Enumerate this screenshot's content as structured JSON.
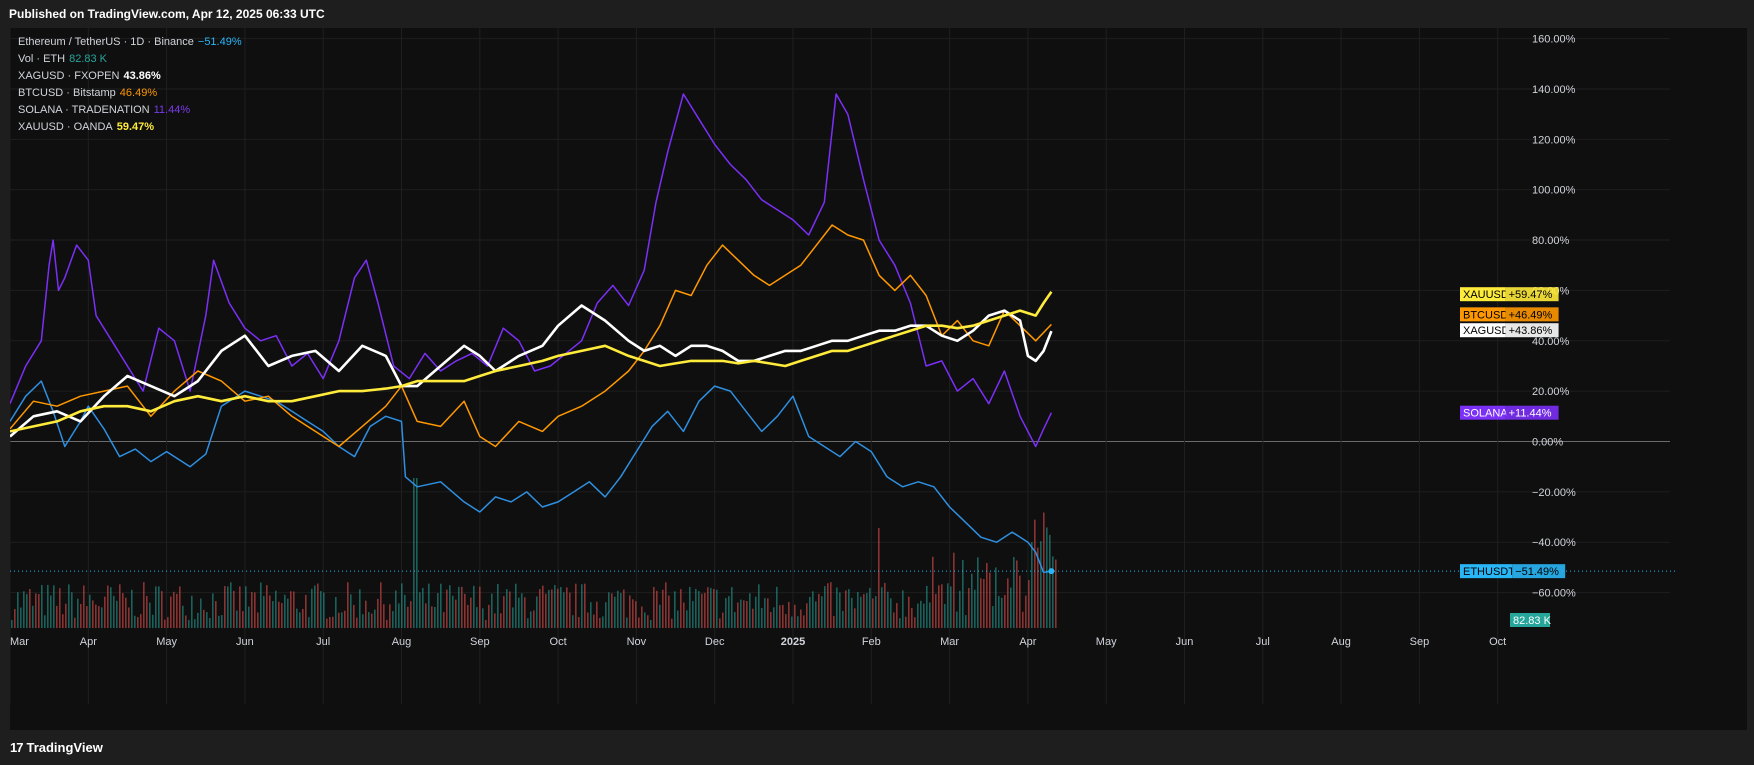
{
  "header": {
    "published": "Published on TradingView.com, Apr 12, 2025 06:33 UTC"
  },
  "legend": [
    {
      "label": "Ethereum / TetherUS · 1D · Binance",
      "value": "−51.49%",
      "color": "#29b6f6"
    },
    {
      "label": "Vol · ETH",
      "value": "82.83 K",
      "color": "#26a69a"
    },
    {
      "label": "XAGUSD · FXOPEN",
      "value": "43.86%",
      "color": "#ffffff"
    },
    {
      "label": "BTCUSD · Bitstamp",
      "value": "46.49%",
      "color": "#ff9800"
    },
    {
      "label": "SOLANA · TRADENATION",
      "value": "11.44%",
      "color": "#7c3aed"
    },
    {
      "label": "XAUUSD · OANDA",
      "value": "59.47%",
      "color": "#ffeb3b"
    }
  ],
  "footer": {
    "brand": "TradingView",
    "logo": "17"
  },
  "chart_data": {
    "type": "line",
    "yaxis_ticks": [
      "160.00%",
      "140.00%",
      "120.00%",
      "100.00%",
      "80.00%",
      "60.00%",
      "40.00%",
      "20.00%",
      "0.00%",
      "−20.00%",
      "−40.00%",
      "−60.00%"
    ],
    "ylim": [
      -75,
      172
    ],
    "xaxis_ticks": [
      "Mar",
      "Apr",
      "May",
      "Jun",
      "Jul",
      "Aug",
      "Sep",
      "Oct",
      "Nov",
      "Dec",
      "2025",
      "Feb",
      "Mar",
      "Apr",
      "May",
      "Jun",
      "Jul",
      "Aug",
      "Sep",
      "Oct"
    ],
    "x_range_months": [
      0,
      19.5
    ],
    "series": [
      {
        "name": "ETHUSDT",
        "badge": "−51.49%",
        "color": "#2f8fe0",
        "width": 1.5,
        "x": [
          0,
          0.2,
          0.4,
          0.55,
          0.7,
          0.9,
          1.0,
          1.2,
          1.4,
          1.6,
          1.8,
          2.0,
          2.3,
          2.5,
          2.7,
          3.0,
          3.2,
          3.4,
          3.6,
          3.8,
          4.0,
          4.2,
          4.4,
          4.6,
          4.8,
          5.0,
          5.05,
          5.2,
          5.5,
          5.8,
          6.0,
          6.2,
          6.4,
          6.6,
          6.8,
          7.0,
          7.2,
          7.4,
          7.6,
          7.8,
          8.0,
          8.2,
          8.4,
          8.6,
          8.8,
          9.0,
          9.2,
          9.4,
          9.6,
          9.8,
          10.0,
          10.2,
          10.4,
          10.6,
          10.8,
          11.0,
          11.2,
          11.4,
          11.6,
          11.8,
          12.0,
          12.2,
          12.4,
          12.6,
          12.8,
          13.0,
          13.1,
          13.2,
          13.3
        ],
        "y": [
          8,
          18,
          24,
          12,
          -2,
          8,
          14,
          5,
          -6,
          -3,
          -8,
          -4,
          -10,
          -5,
          14,
          20,
          18,
          16,
          12,
          8,
          4,
          -2,
          -6,
          6,
          10,
          8,
          -14,
          -18,
          -16,
          -24,
          -28,
          -22,
          -24,
          -20,
          -26,
          -24,
          -20,
          -16,
          -22,
          -14,
          -4,
          6,
          12,
          4,
          16,
          22,
          20,
          12,
          4,
          10,
          18,
          2,
          -2,
          -6,
          0,
          -4,
          -14,
          -18,
          -16,
          -18,
          -26,
          -32,
          -38,
          -40,
          -36,
          -40,
          -44,
          -52,
          -51.49
        ]
      },
      {
        "name": "SOLANA",
        "badge": "+11.44%",
        "color": "#7b2ff7",
        "width": 1.5,
        "x": [
          0,
          0.2,
          0.4,
          0.5,
          0.55,
          0.62,
          0.7,
          0.85,
          1.0,
          1.1,
          1.3,
          1.5,
          1.7,
          1.9,
          2.1,
          2.3,
          2.5,
          2.6,
          2.8,
          3.0,
          3.2,
          3.4,
          3.6,
          3.8,
          4.0,
          4.2,
          4.4,
          4.55,
          4.7,
          4.9,
          5.1,
          5.3,
          5.5,
          5.7,
          5.9,
          6.1,
          6.3,
          6.5,
          6.7,
          6.9,
          7.1,
          7.3,
          7.5,
          7.7,
          7.9,
          8.1,
          8.25,
          8.4,
          8.6,
          8.8,
          9.0,
          9.2,
          9.4,
          9.6,
          9.8,
          10.0,
          10.2,
          10.4,
          10.55,
          10.7,
          10.9,
          11.1,
          11.3,
          11.5,
          11.7,
          11.9,
          12.1,
          12.3,
          12.5,
          12.7,
          12.9,
          13.1,
          13.2,
          13.3
        ],
        "y": [
          15,
          30,
          40,
          70,
          80,
          60,
          65,
          78,
          72,
          50,
          40,
          30,
          20,
          45,
          40,
          20,
          50,
          72,
          55,
          45,
          40,
          42,
          30,
          35,
          25,
          40,
          65,
          72,
          55,
          30,
          25,
          35,
          28,
          32,
          35,
          30,
          45,
          40,
          28,
          30,
          35,
          40,
          55,
          62,
          54,
          68,
          95,
          115,
          138,
          128,
          118,
          110,
          104,
          96,
          92,
          88,
          82,
          95,
          138,
          130,
          104,
          80,
          70,
          55,
          30,
          32,
          20,
          25,
          15,
          28,
          10,
          -2,
          5,
          11.44
        ]
      },
      {
        "name": "BTCUSD",
        "badge": "+46.49%",
        "color": "#ff9800",
        "width": 1.5,
        "x": [
          0,
          0.3,
          0.6,
          0.9,
          1.2,
          1.5,
          1.8,
          2.1,
          2.4,
          2.7,
          3.0,
          3.3,
          3.6,
          3.9,
          4.2,
          4.5,
          4.8,
          5.0,
          5.2,
          5.5,
          5.8,
          6.0,
          6.2,
          6.5,
          6.8,
          7.0,
          7.3,
          7.6,
          7.9,
          8.1,
          8.3,
          8.5,
          8.7,
          8.9,
          9.1,
          9.3,
          9.5,
          9.7,
          9.9,
          10.1,
          10.3,
          10.5,
          10.7,
          10.9,
          11.1,
          11.3,
          11.5,
          11.7,
          11.9,
          12.1,
          12.3,
          12.5,
          12.7,
          12.9,
          13.1,
          13.3
        ],
        "y": [
          5,
          16,
          14,
          18,
          20,
          22,
          10,
          20,
          28,
          24,
          16,
          18,
          10,
          4,
          -2,
          6,
          14,
          22,
          8,
          6,
          16,
          2,
          -2,
          8,
          4,
          10,
          14,
          20,
          28,
          36,
          46,
          60,
          58,
          70,
          78,
          72,
          66,
          62,
          66,
          70,
          78,
          86,
          82,
          80,
          66,
          60,
          66,
          58,
          42,
          48,
          40,
          38,
          52,
          46,
          40,
          46.49
        ]
      },
      {
        "name": "XAGUSD",
        "badge": "+43.86%",
        "color": "#ffffff",
        "width": 2.6,
        "x": [
          0,
          0.3,
          0.6,
          0.9,
          1.2,
          1.5,
          1.8,
          2.1,
          2.4,
          2.7,
          3.0,
          3.3,
          3.6,
          3.9,
          4.2,
          4.5,
          4.8,
          5.0,
          5.2,
          5.5,
          5.8,
          6.0,
          6.2,
          6.5,
          6.8,
          7.0,
          7.3,
          7.6,
          7.9,
          8.1,
          8.3,
          8.5,
          8.7,
          8.9,
          9.1,
          9.3,
          9.5,
          9.7,
          9.9,
          10.1,
          10.3,
          10.5,
          10.7,
          10.9,
          11.1,
          11.3,
          11.5,
          11.7,
          11.9,
          12.1,
          12.3,
          12.5,
          12.7,
          12.9,
          13.0,
          13.1,
          13.2,
          13.3
        ],
        "y": [
          2,
          10,
          12,
          8,
          18,
          26,
          22,
          18,
          24,
          36,
          42,
          30,
          34,
          36,
          28,
          38,
          34,
          22,
          22,
          30,
          38,
          34,
          28,
          34,
          38,
          46,
          54,
          48,
          40,
          36,
          38,
          34,
          38,
          38,
          36,
          32,
          32,
          34,
          36,
          36,
          38,
          40,
          40,
          42,
          44,
          44,
          46,
          46,
          42,
          40,
          44,
          50,
          52,
          48,
          34,
          32,
          36,
          43.86
        ]
      },
      {
        "name": "XAUUSD",
        "badge": "+59.47%",
        "color": "#ffeb3b",
        "width": 2.6,
        "x": [
          0,
          0.3,
          0.6,
          0.9,
          1.2,
          1.5,
          1.8,
          2.1,
          2.4,
          2.7,
          3.0,
          3.3,
          3.6,
          3.9,
          4.2,
          4.5,
          4.8,
          5.0,
          5.2,
          5.5,
          5.8,
          6.0,
          6.2,
          6.5,
          6.8,
          7.0,
          7.3,
          7.6,
          7.9,
          8.1,
          8.3,
          8.5,
          8.7,
          8.9,
          9.1,
          9.3,
          9.5,
          9.7,
          9.9,
          10.1,
          10.3,
          10.5,
          10.7,
          10.9,
          11.1,
          11.3,
          11.5,
          11.7,
          11.9,
          12.1,
          12.3,
          12.5,
          12.7,
          12.9,
          13.1,
          13.2,
          13.3
        ],
        "y": [
          4,
          6,
          8,
          12,
          14,
          14,
          12,
          16,
          18,
          16,
          18,
          16,
          16,
          18,
          20,
          20,
          21,
          22,
          24,
          24,
          24,
          26,
          28,
          30,
          32,
          34,
          36,
          38,
          34,
          32,
          30,
          31,
          32,
          32,
          32,
          31,
          32,
          31,
          30,
          32,
          34,
          36,
          36,
          38,
          40,
          42,
          44,
          46,
          46,
          45,
          46,
          48,
          50,
          52,
          50,
          55,
          59.47
        ]
      }
    ],
    "last_price_marker": {
      "series": "ETHUSDT",
      "value": -51.49
    },
    "volume": {
      "label": "Vol · ETH",
      "badge": "82.83 K",
      "up_color": "#26a69a",
      "down_color": "#ef5350"
    }
  }
}
